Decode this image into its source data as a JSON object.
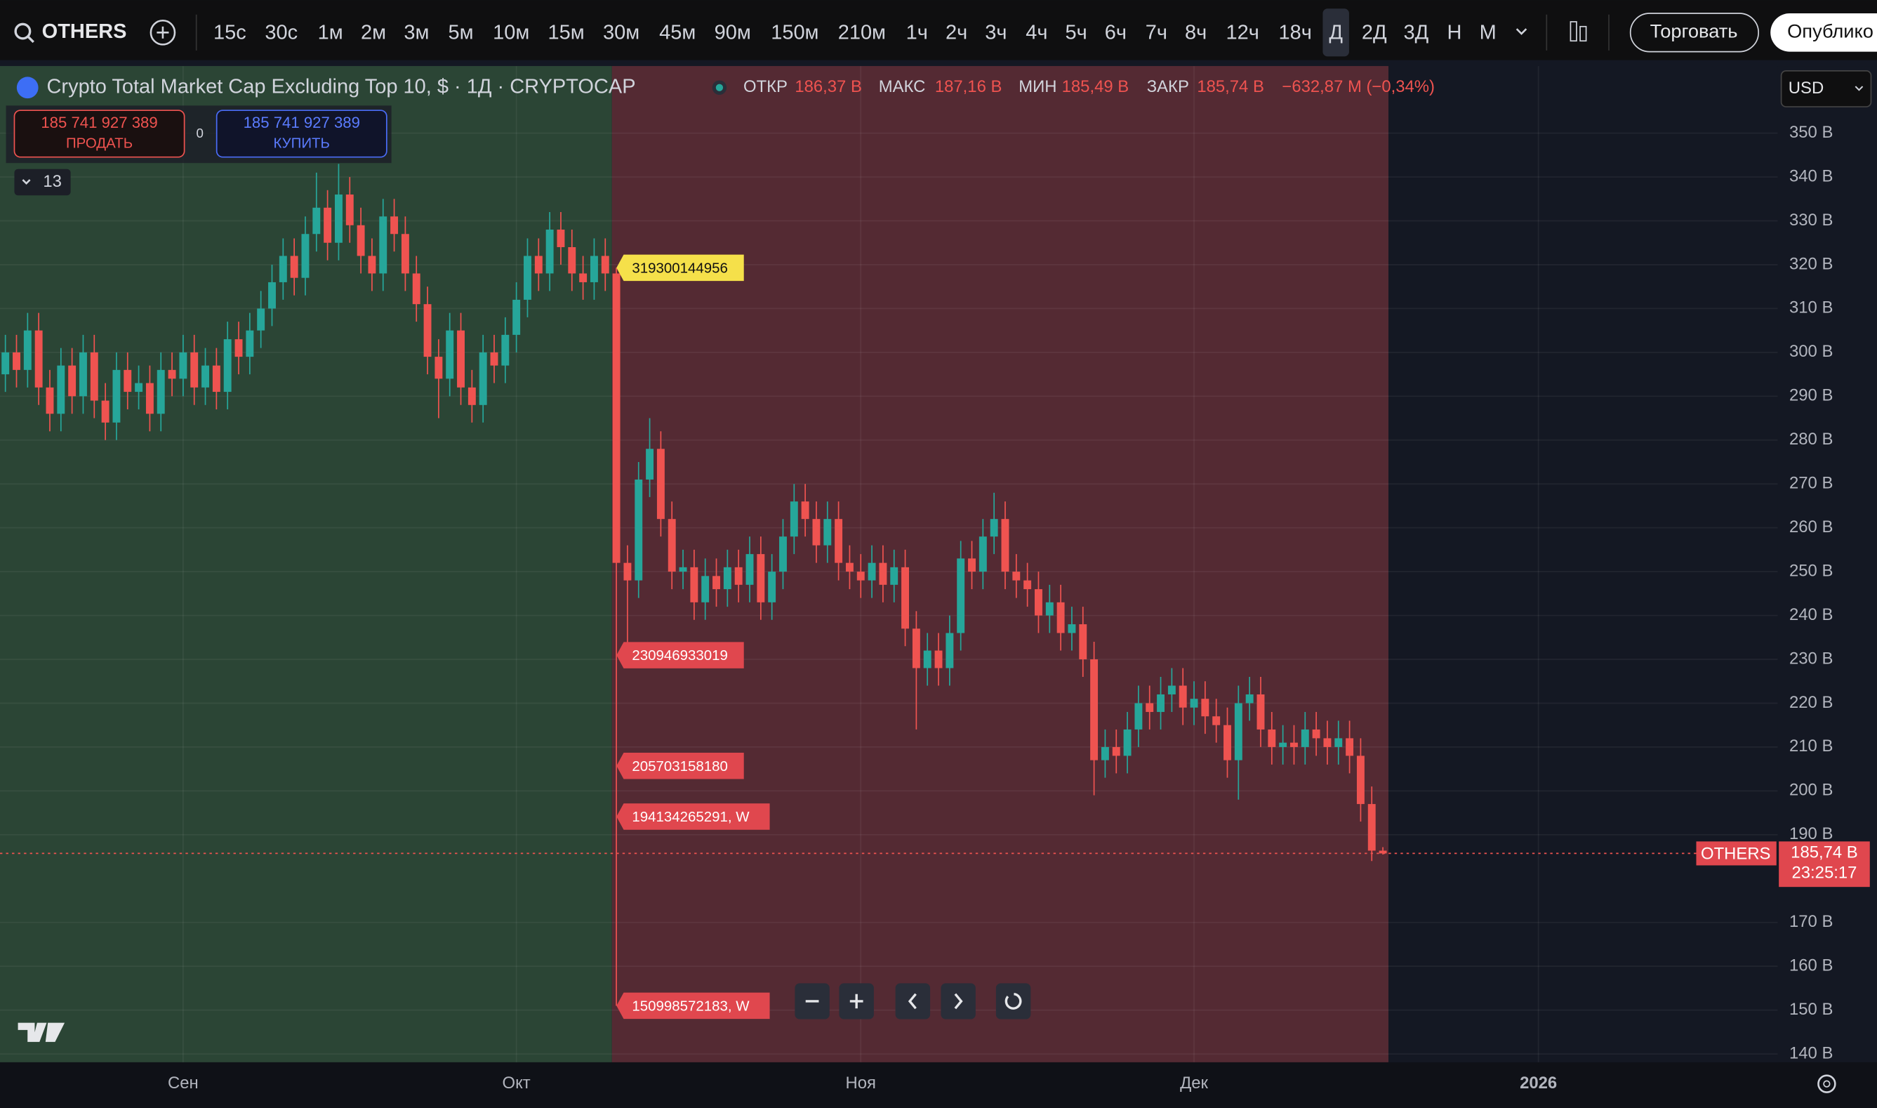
{
  "toolbar": {
    "symbol": "OTHERS",
    "intervals": [
      "15с",
      "30с",
      "1м",
      "2м",
      "3м",
      "5м",
      "10м",
      "15м",
      "30м",
      "45м",
      "90м",
      "150м",
      "210м",
      "1ч",
      "2ч",
      "3ч",
      "4ч",
      "5ч",
      "6ч",
      "7ч",
      "8ч",
      "12ч",
      "18ч",
      "Д",
      "2Д",
      "3Д",
      "Н",
      "М"
    ],
    "active_interval": "Д",
    "trade_button": "Торговать",
    "publish_button": "Опублико"
  },
  "legend": {
    "title": "Crypto Total Market Cap Excluding Top 10, $ · 1Д · CRYPTOCAP",
    "open_label": "ОТКР",
    "open": "186,37 B",
    "high_label": "МАКС",
    "high": "187,16 B",
    "low_label": "МИН",
    "low": "185,49 B",
    "close_label": "ЗАКР",
    "close": "185,74 B",
    "change": "−632,87 M (−0,34%)"
  },
  "trade_panel": {
    "sell_price": "185 741 927 389",
    "sell_label": "ПРОДАТЬ",
    "spread": "0",
    "buy_price": "185 741 927 389",
    "buy_label": "КУПИТЬ"
  },
  "indicators_count": "13",
  "currency": "USD",
  "price_tag": {
    "name": "OTHERS",
    "price": "185,74 B",
    "countdown": "23:25:17"
  },
  "chart_data": {
    "type": "candlestick",
    "up_color": "#26a69a",
    "down_color": "#ef5350",
    "grid": true,
    "categories": [
      null,
      null,
      null,
      null,
      null,
      null,
      null,
      null,
      null,
      null,
      null,
      null,
      null,
      null,
      null,
      null,
      "Сен",
      null,
      null,
      null,
      null,
      null,
      null,
      null,
      null,
      null,
      null,
      null,
      null,
      null,
      null,
      null,
      null,
      null,
      null,
      null,
      null,
      null,
      null,
      null,
      null,
      null,
      null,
      null,
      null,
      null,
      "Окт",
      null,
      null,
      null,
      null,
      null,
      null,
      null,
      null,
      null,
      null,
      null,
      null,
      null,
      null,
      null,
      null,
      null,
      null,
      null,
      null,
      null,
      null,
      null,
      null,
      null,
      null,
      null,
      null,
      null,
      null,
      "Ноя",
      null,
      null,
      null,
      null,
      null,
      null,
      null,
      null,
      null,
      null,
      null,
      null,
      null,
      null,
      null,
      null,
      null,
      null,
      null,
      null,
      null,
      null,
      null,
      null,
      null,
      null,
      null,
      null,
      null,
      "Дек",
      null,
      null,
      null,
      null,
      null,
      null,
      null,
      null,
      null,
      null,
      null,
      null,
      null,
      null,
      null,
      null,
      null,
      null,
      null,
      null,
      null,
      null,
      null,
      null,
      null,
      null,
      null,
      null,
      null,
      null,
      "2026"
    ],
    "open": [
      295,
      300,
      296,
      305,
      292,
      286,
      297,
      290,
      300,
      289,
      284,
      296,
      291,
      293,
      286,
      296,
      294,
      300,
      292,
      297,
      291,
      303,
      299,
      305,
      310,
      316,
      322,
      317,
      327,
      333,
      325,
      336,
      329,
      322,
      318,
      331,
      327,
      318,
      311,
      299,
      294,
      305,
      292,
      288,
      300,
      297,
      304,
      312,
      322,
      318,
      328,
      324,
      318,
      316,
      322,
      318,
      252,
      248,
      271,
      278,
      262,
      250,
      251,
      243,
      249,
      246,
      251,
      247,
      254,
      243,
      250,
      258,
      266,
      262,
      256,
      262,
      252,
      250,
      248,
      252,
      247,
      251,
      237,
      228,
      232,
      228,
      236,
      253,
      250,
      258,
      262,
      250,
      248,
      246,
      240,
      243,
      236,
      238,
      230,
      207,
      210,
      208,
      214,
      220,
      218,
      222,
      224,
      219,
      221,
      217,
      215,
      207,
      220,
      222,
      214,
      210,
      211,
      210,
      214,
      212,
      210,
      212,
      208,
      197,
      186.37,
      null,
      null,
      null,
      null,
      null,
      null,
      null,
      null,
      null,
      null,
      null,
      null,
      null,
      null
    ],
    "high": [
      304,
      304,
      309,
      309,
      296,
      301,
      301,
      304,
      304,
      293,
      300,
      300,
      297,
      297,
      300,
      300,
      304,
      304,
      301,
      301,
      307,
      307,
      309,
      314,
      320,
      326,
      326,
      331,
      341,
      337,
      343,
      340,
      333,
      326,
      335,
      335,
      331,
      322,
      315,
      303,
      309,
      309,
      296,
      304,
      304,
      308,
      316,
      326,
      326,
      332,
      332,
      328,
      322,
      326,
      326,
      319.3,
      256,
      275,
      285,
      282,
      266,
      255,
      255,
      253,
      253,
      255,
      255,
      258,
      258,
      254,
      262,
      270,
      270,
      266,
      266,
      266,
      256,
      254,
      256,
      256,
      255,
      255,
      241,
      236,
      236,
      240,
      257,
      257,
      262,
      268,
      266,
      254,
      252,
      250,
      247,
      247,
      242,
      242,
      234,
      214,
      214,
      218,
      224,
      224,
      226,
      228,
      228,
      225,
      225,
      221,
      219,
      224,
      226,
      226,
      218,
      215,
      215,
      218,
      218,
      216,
      216,
      216,
      212,
      201,
      187.16,
      null,
      null,
      null,
      null,
      null,
      null,
      null,
      null,
      null,
      null,
      null,
      null,
      null,
      null
    ],
    "low": [
      291,
      292,
      292,
      288,
      282,
      282,
      286,
      286,
      285,
      280,
      280,
      287,
      287,
      282,
      282,
      290,
      290,
      288,
      288,
      287,
      287,
      295,
      295,
      301,
      306,
      312,
      313,
      313,
      323,
      321,
      321,
      325,
      318,
      314,
      314,
      323,
      314,
      307,
      295,
      285,
      290,
      288,
      284,
      284,
      293,
      293,
      300,
      308,
      314,
      314,
      320,
      314,
      312,
      312,
      314,
      151,
      230.95,
      244,
      267,
      258,
      246,
      246,
      239,
      239,
      242,
      242,
      243,
      243,
      239,
      239,
      246,
      254,
      258,
      252,
      252,
      248,
      246,
      244,
      244,
      243,
      243,
      233,
      214,
      224,
      224,
      224,
      232,
      246,
      246,
      254,
      246,
      244,
      242,
      236,
      236,
      232,
      232,
      226,
      199,
      203,
      204,
      204,
      210,
      214,
      214,
      218,
      215,
      215,
      213,
      211,
      203,
      198,
      216,
      210,
      206,
      206,
      206,
      206,
      208,
      206,
      206,
      204,
      193,
      184,
      185.49,
      null,
      null,
      null,
      null,
      null,
      null,
      null,
      null,
      null,
      null,
      null,
      null,
      null,
      null
    ],
    "close": [
      300,
      296,
      305,
      292,
      286,
      297,
      290,
      300,
      289,
      284,
      296,
      291,
      293,
      286,
      296,
      294,
      300,
      292,
      297,
      291,
      303,
      299,
      305,
      310,
      316,
      322,
      317,
      327,
      333,
      325,
      336,
      329,
      322,
      318,
      331,
      327,
      318,
      311,
      299,
      294,
      305,
      292,
      288,
      300,
      297,
      304,
      312,
      322,
      318,
      328,
      324,
      318,
      316,
      322,
      318,
      252,
      248,
      271,
      278,
      262,
      250,
      251,
      243,
      249,
      246,
      251,
      247,
      254,
      243,
      250,
      258,
      266,
      262,
      256,
      262,
      252,
      250,
      248,
      252,
      247,
      251,
      237,
      228,
      232,
      228,
      236,
      253,
      250,
      258,
      262,
      250,
      248,
      246,
      240,
      243,
      236,
      238,
      230,
      207,
      210,
      208,
      214,
      220,
      218,
      222,
      224,
      219,
      221,
      217,
      215,
      207,
      220,
      222,
      214,
      210,
      211,
      210,
      214,
      212,
      210,
      212,
      208,
      197,
      186.37,
      185.74,
      null,
      null,
      null,
      null,
      null,
      null,
      null,
      null,
      null,
      null,
      null,
      null,
      null,
      null
    ],
    "ylim": [
      138.1,
      365.3
    ],
    "yticks": [
      {
        "value": 140,
        "label": "140 B"
      },
      {
        "value": 150,
        "label": "150 B"
      },
      {
        "value": 160,
        "label": "160 B"
      },
      {
        "value": 170,
        "label": "170 B"
      },
      {
        "value": 190,
        "label": "190 B"
      },
      {
        "value": 200,
        "label": "200 B"
      },
      {
        "value": 210,
        "label": "210 B"
      },
      {
        "value": 220,
        "label": "220 B"
      },
      {
        "value": 230,
        "label": "230 B"
      },
      {
        "value": 240,
        "label": "240 B"
      },
      {
        "value": 250,
        "label": "250 B"
      },
      {
        "value": 260,
        "label": "260 B"
      },
      {
        "value": 270,
        "label": "270 B"
      },
      {
        "value": 280,
        "label": "280 B"
      },
      {
        "value": 290,
        "label": "290 B"
      },
      {
        "value": 300,
        "label": "300 B"
      },
      {
        "value": 310,
        "label": "310 B"
      },
      {
        "value": 320,
        "label": "320 B"
      },
      {
        "value": 330,
        "label": "330 B"
      },
      {
        "value": 340,
        "label": "340 B"
      },
      {
        "value": 350,
        "label": "350 B"
      }
    ],
    "price_labels": [
      {
        "value": 319.300144956,
        "label": "319300144956",
        "color": "#f5e04a"
      },
      {
        "value": 230.946933019,
        "label": "230946933019",
        "color": "#e0474e"
      },
      {
        "value": 205.70315818,
        "label": "205703158180",
        "color": "#e0474e"
      },
      {
        "value": 194.134265291,
        "label": "194134265291, W",
        "color": "#e0474e"
      },
      {
        "value": 150.998572183,
        "label": "150998572183, W",
        "color": "#e0474e"
      }
    ]
  }
}
